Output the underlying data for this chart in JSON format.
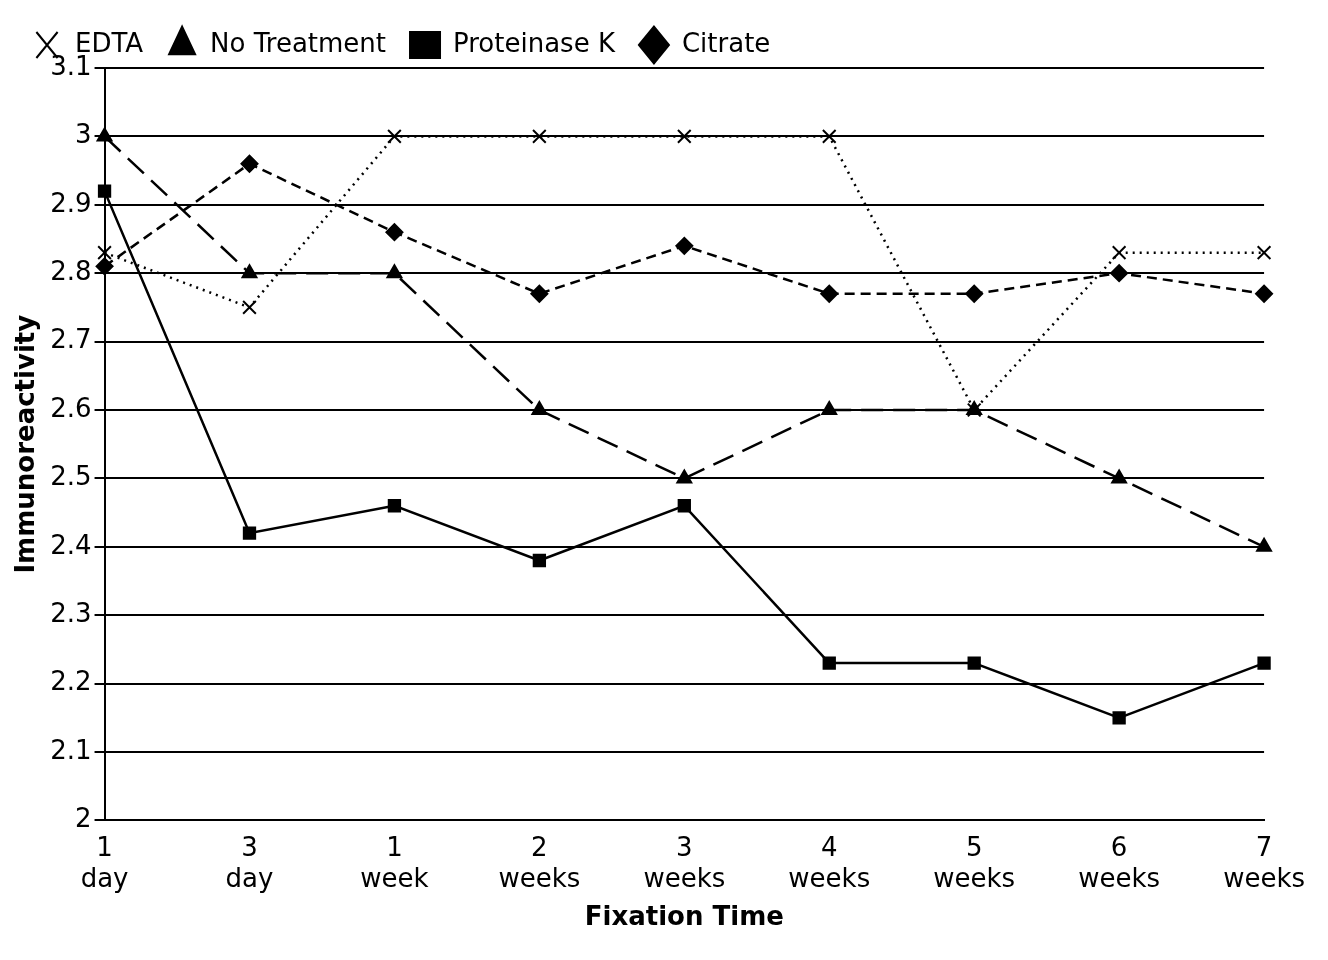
{
  "chart_data": {
    "type": "line",
    "xlabel": "Fixation Time",
    "ylabel": "Immunoreactivity",
    "categories": [
      "1 day",
      "3 day",
      "1 week",
      "2 weeks",
      "3 weeks",
      "4 weeks",
      "5 weeks",
      "6 weeks",
      "7 weeks"
    ],
    "series": [
      {
        "name": "Citrate",
        "color": "#000000",
        "marker": "diamond",
        "line_style": "dashed",
        "values": [
          2.81,
          2.96,
          2.86,
          2.77,
          2.84,
          2.77,
          2.77,
          2.8,
          2.77
        ]
      },
      {
        "name": "Proteinase K",
        "color": "#000000",
        "marker": "square",
        "line_style": "solid",
        "values": [
          2.92,
          2.42,
          2.46,
          2.38,
          2.46,
          2.23,
          2.23,
          2.15,
          2.23
        ]
      },
      {
        "name": "No Treatment",
        "color": "#000000",
        "marker": "triangle",
        "line_style": "dashed",
        "values": [
          3.0,
          2.8,
          2.8,
          2.6,
          2.5,
          2.6,
          2.6,
          2.5,
          2.4
        ]
      },
      {
        "name": "EDTA",
        "color": "#000000",
        "marker": "cross",
        "line_style": "dotted",
        "values": [
          2.83,
          2.75,
          3.0,
          3.0,
          3.0,
          3.0,
          2.6,
          2.83,
          2.83
        ]
      }
    ],
    "ylim": [
      2,
      3.1
    ],
    "yticks": [
      2,
      2.1,
      2.2,
      2.3,
      2.4,
      2.5,
      2.6,
      2.7,
      2.8,
      2.9,
      3,
      3.1
    ],
    "grid": "y",
    "legend": "top"
  }
}
